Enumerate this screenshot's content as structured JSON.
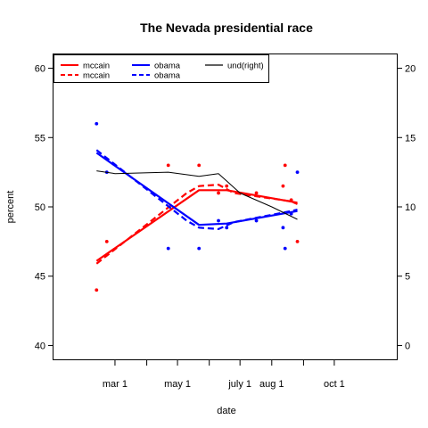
{
  "chart_data": {
    "type": "line",
    "title": "The Nevada presidential race",
    "xlabel": "date",
    "ylabel": "percent",
    "x_axis": {
      "type": "date",
      "range": [
        "2008-01-01",
        "2008-12-01"
      ],
      "tick_labels": [
        {
          "date": "2008-03-01",
          "label": "mar 1"
        },
        {
          "date": "2008-05-01",
          "label": "may 1"
        },
        {
          "date": "2008-07-01",
          "label": "july 1"
        },
        {
          "date": "2008-08-01",
          "label": "aug 1"
        },
        {
          "date": "2008-10-01",
          "label": "oct 1"
        }
      ],
      "minor_ticks": [
        "2008-04-01",
        "2008-06-01",
        "2008-09-01"
      ]
    },
    "y_left": {
      "ylim": [
        39,
        61
      ],
      "ticks": [
        40,
        45,
        50,
        55,
        60
      ]
    },
    "y_right": {
      "ylim": [
        -1,
        21
      ],
      "ticks": [
        0,
        5,
        10,
        15,
        20
      ]
    },
    "legend": {
      "position": "top-left",
      "entries": [
        {
          "label": "mccain",
          "color": "#ff0000",
          "style": "solid"
        },
        {
          "label": "mccain",
          "color": "#ff0000",
          "style": "dashed"
        },
        {
          "label": "obama",
          "color": "#0000ff",
          "style": "solid"
        },
        {
          "label": "obama",
          "color": "#0000ff",
          "style": "dashed"
        },
        {
          "label": "und(right)",
          "color": "#000000",
          "style": "solid"
        }
      ]
    },
    "colors": {
      "mccain": "#ff0000",
      "obama": "#0000ff",
      "und": "#000000"
    },
    "series": [
      {
        "key": "mccain_points",
        "kind": "points",
        "color": "#ff0000",
        "axis": "left",
        "points": [
          {
            "x": "2008-02-12",
            "y": 44
          },
          {
            "x": "2008-02-22",
            "y": 47.5
          },
          {
            "x": "2008-04-22",
            "y": 53
          },
          {
            "x": "2008-05-22",
            "y": 53
          },
          {
            "x": "2008-06-10",
            "y": 51
          },
          {
            "x": "2008-06-18",
            "y": 51.5
          },
          {
            "x": "2008-07-17",
            "y": 51
          },
          {
            "x": "2008-08-12",
            "y": 51.5
          },
          {
            "x": "2008-08-14",
            "y": 53
          },
          {
            "x": "2008-08-20",
            "y": 50.5
          },
          {
            "x": "2008-08-26",
            "y": 47.5
          }
        ]
      },
      {
        "key": "obama_points",
        "kind": "points",
        "color": "#0000ff",
        "axis": "left",
        "points": [
          {
            "x": "2008-02-12",
            "y": 56
          },
          {
            "x": "2008-02-22",
            "y": 52.5
          },
          {
            "x": "2008-04-22",
            "y": 47
          },
          {
            "x": "2008-05-22",
            "y": 47
          },
          {
            "x": "2008-06-10",
            "y": 49
          },
          {
            "x": "2008-06-18",
            "y": 48.5
          },
          {
            "x": "2008-07-17",
            "y": 49
          },
          {
            "x": "2008-08-12",
            "y": 48.5
          },
          {
            "x": "2008-08-14",
            "y": 47
          },
          {
            "x": "2008-08-20",
            "y": 49.5
          },
          {
            "x": "2008-08-26",
            "y": 52.5
          }
        ]
      },
      {
        "key": "mccain_solid",
        "name": "mccain",
        "kind": "line",
        "color": "#ff0000",
        "dash": "none",
        "axis": "left",
        "points": [
          {
            "x": "2008-02-12",
            "y": 46.1
          },
          {
            "x": "2008-05-22",
            "y": 51.2
          },
          {
            "x": "2008-06-18",
            "y": 51.2
          },
          {
            "x": "2008-08-26",
            "y": 50.3
          }
        ]
      },
      {
        "key": "mccain_dashed",
        "name": "mccain",
        "kind": "line",
        "color": "#ff0000",
        "dash": "7,4",
        "axis": "left",
        "points": [
          {
            "x": "2008-02-12",
            "y": 45.9
          },
          {
            "x": "2008-05-10",
            "y": 51.0
          },
          {
            "x": "2008-05-22",
            "y": 51.5
          },
          {
            "x": "2008-06-10",
            "y": 51.6
          },
          {
            "x": "2008-06-25",
            "y": 51.0
          },
          {
            "x": "2008-08-20",
            "y": 50.4
          },
          {
            "x": "2008-08-26",
            "y": 50.2
          }
        ]
      },
      {
        "key": "obama_solid",
        "name": "obama",
        "kind": "line",
        "color": "#0000ff",
        "dash": "none",
        "axis": "left",
        "points": [
          {
            "x": "2008-02-12",
            "y": 53.9
          },
          {
            "x": "2008-05-22",
            "y": 48.7
          },
          {
            "x": "2008-06-18",
            "y": 48.8
          },
          {
            "x": "2008-08-26",
            "y": 49.7
          }
        ]
      },
      {
        "key": "obama_dashed",
        "name": "obama",
        "kind": "line",
        "color": "#0000ff",
        "dash": "7,4",
        "axis": "left",
        "points": [
          {
            "x": "2008-02-12",
            "y": 54.1
          },
          {
            "x": "2008-05-10",
            "y": 49.0
          },
          {
            "x": "2008-05-22",
            "y": 48.5
          },
          {
            "x": "2008-06-10",
            "y": 48.4
          },
          {
            "x": "2008-06-25",
            "y": 48.9
          },
          {
            "x": "2008-08-20",
            "y": 49.7
          },
          {
            "x": "2008-08-26",
            "y": 49.8
          }
        ]
      },
      {
        "key": "und",
        "name": "und(right)",
        "kind": "line",
        "color": "#000000",
        "dash": "none",
        "axis": "right",
        "points": [
          {
            "x": "2008-02-12",
            "y": 12.6
          },
          {
            "x": "2008-03-01",
            "y": 12.4
          },
          {
            "x": "2008-04-22",
            "y": 12.5
          },
          {
            "x": "2008-05-22",
            "y": 12.2
          },
          {
            "x": "2008-06-10",
            "y": 12.4
          },
          {
            "x": "2008-07-01",
            "y": 11.0
          },
          {
            "x": "2008-08-01",
            "y": 10.0
          },
          {
            "x": "2008-08-26",
            "y": 9.1
          }
        ]
      }
    ]
  }
}
